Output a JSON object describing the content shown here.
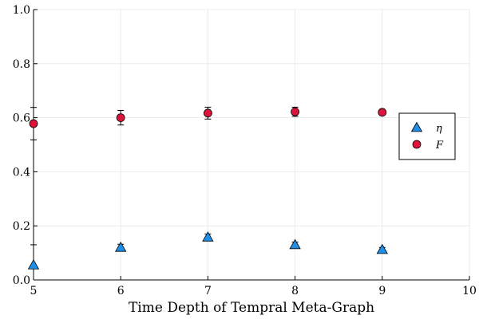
{
  "chart_data": {
    "type": "scatter",
    "title": "",
    "xlabel": "Time Depth of Tempral Meta-Graph",
    "ylabel": "",
    "xlim": [
      5,
      10
    ],
    "ylim": [
      0.0,
      1.0
    ],
    "xticks": [
      5,
      6,
      7,
      8,
      9,
      10
    ],
    "yticks": [
      0.0,
      0.2,
      0.4,
      0.6,
      0.8,
      1.0
    ],
    "ytick_labels": [
      "0.0",
      "0.2",
      "0.4",
      "0.6",
      "0.8",
      "1.0"
    ],
    "grid": true,
    "legend_position": "right",
    "series": [
      {
        "name": "η",
        "marker": "triangle",
        "color": "#1f8ee6",
        "x": [
          5,
          6,
          7,
          8,
          9
        ],
        "y": [
          0.055,
          0.12,
          0.158,
          0.13,
          0.112
        ],
        "err": [
          0.075,
          0.012,
          0.012,
          0.01,
          0.008
        ]
      },
      {
        "name": "F",
        "marker": "circle",
        "color": "#dc143c",
        "x": [
          5,
          6,
          7,
          8,
          9
        ],
        "y": [
          0.578,
          0.6,
          0.617,
          0.622,
          0.62
        ],
        "err": [
          0.06,
          0.027,
          0.022,
          0.017,
          0.008
        ]
      }
    ]
  }
}
